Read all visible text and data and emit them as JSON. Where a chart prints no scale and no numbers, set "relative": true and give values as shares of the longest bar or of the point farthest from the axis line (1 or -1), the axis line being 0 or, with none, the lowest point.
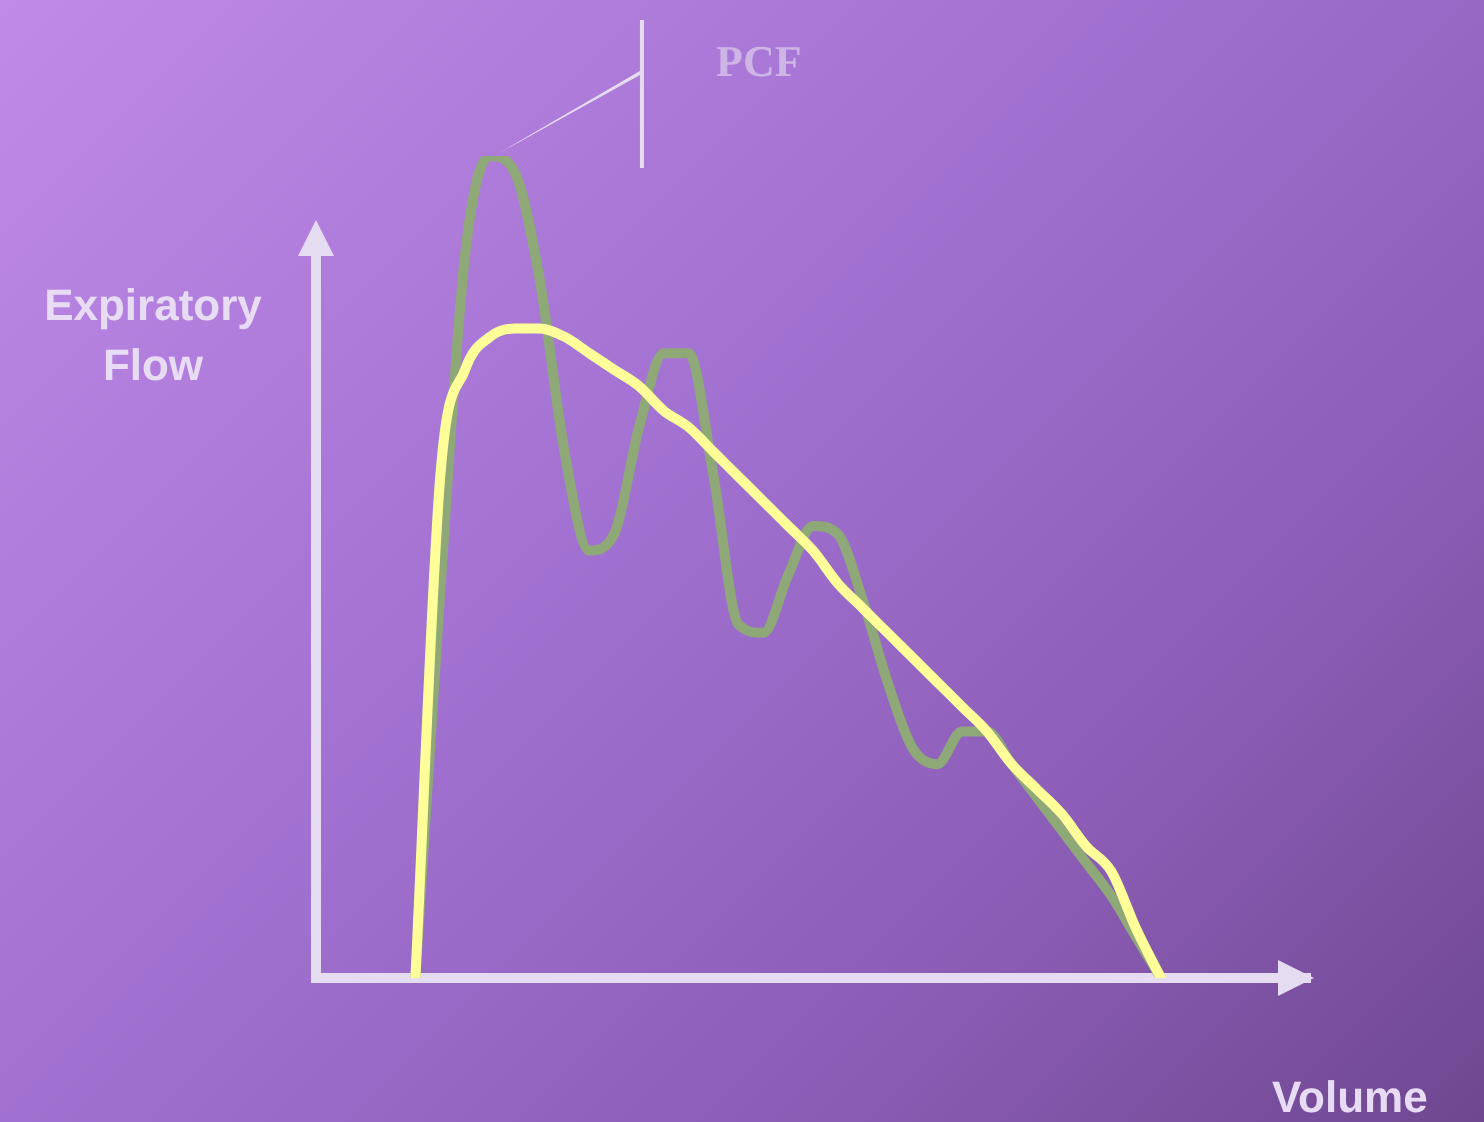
{
  "chart_data": {
    "type": "line",
    "relative": true,
    "xlabel": "Volume",
    "ylabel": "Expiratory Flow",
    "annotations": [
      "PCF"
    ],
    "marker": "none",
    "line_style": "solid",
    "categories": [
      null,
      null,
      null,
      null,
      null,
      null,
      null,
      null,
      null,
      null,
      null,
      null,
      null,
      null,
      null,
      null,
      null,
      null,
      null,
      null,
      null,
      null,
      null,
      null,
      null,
      null,
      null,
      null,
      null,
      null,
      null,
      null,
      null,
      null,
      null,
      null,
      null,
      null,
      null,
      null,
      null
    ],
    "series": [
      {
        "color": "#ffff99",
        "values": [
          null,
          null,
          null,
          null,
          0,
          0.61,
          0.74,
          0.78,
          0.79,
          0.79,
          0.78,
          0.76,
          0.74,
          0.72,
          0.69,
          0.67,
          0.64,
          0.61,
          0.58,
          0.55,
          0.52,
          0.48,
          0.45,
          0.42,
          0.39,
          0.36,
          0.33,
          0.3,
          0.26,
          0.23,
          0.2,
          0.16,
          0.13,
          0.06,
          0,
          null,
          null,
          null,
          null,
          null,
          null
        ]
      },
      {
        "color": "#8fa878",
        "values": [
          null,
          null,
          null,
          null,
          0,
          0.47,
          0.88,
          1,
          0.98,
          0.85,
          0.64,
          0.52,
          0.54,
          0.67,
          0.76,
          0.76,
          0.61,
          0.43,
          0.42,
          0.49,
          0.55,
          0.54,
          0.46,
          0.36,
          0.28,
          0.26,
          0.3,
          0.3,
          0.26,
          0.22,
          0.18,
          0.14,
          0.1,
          0.05,
          0,
          null,
          null,
          null,
          null,
          null,
          null
        ]
      }
    ]
  }
}
